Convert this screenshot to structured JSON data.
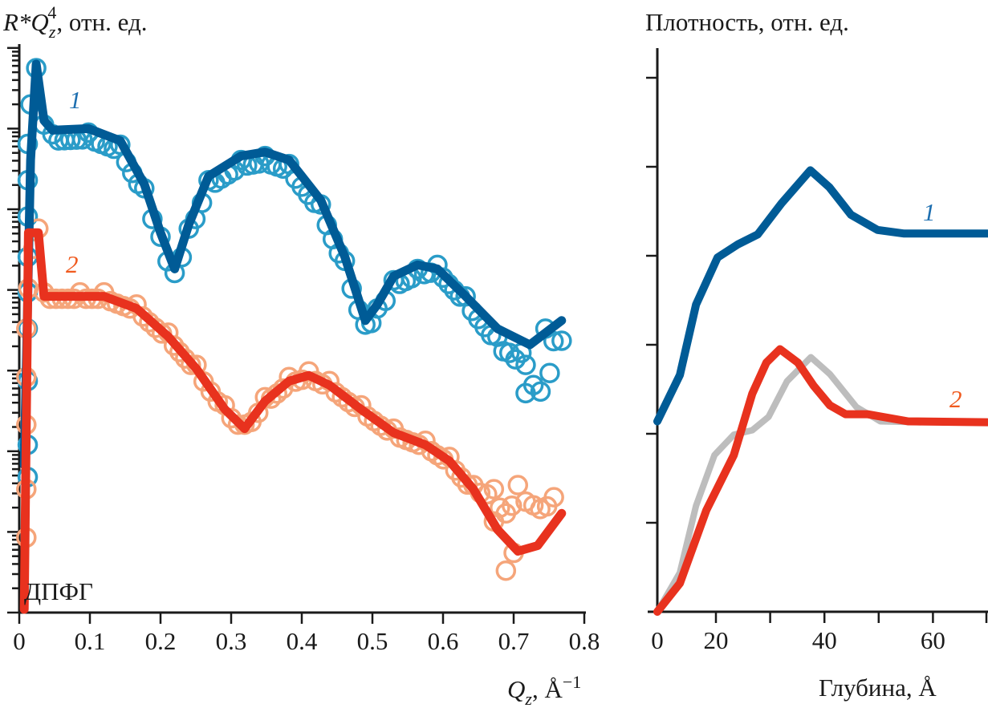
{
  "colors": {
    "fit1": "#005b96",
    "points1": "#2a9cc8",
    "fit2": "#e8321e",
    "points2": "#f5a57a",
    "reference": "#bdbdbd",
    "label1": "#1e6fb0",
    "label2": "#f05a1e"
  },
  "chart_data": [
    {
      "type": "scatter",
      "title": "",
      "ylabel_main": "R*Q",
      "ylabel_sub": "z",
      "ylabel_sup": "4",
      "ylabel_rest": ", отн. ед.",
      "xlabel_main": "Q",
      "xlabel_sub": "z",
      "xlabel_rest": ", Å",
      "xlabel_sup": "−1",
      "annotation": "ДПФГ",
      "yscale": "log (arbitrary decades, no tick labels)",
      "xlim": [
        0,
        0.8
      ],
      "ylim_decades": [
        0,
        7.05
      ],
      "xticks": [
        "0",
        "0.1",
        "0.2",
        "0.3",
        "0.4",
        "0.5",
        "0.6",
        "0.7",
        "0.8"
      ],
      "series": [
        {
          "name": "1",
          "kind": "fit",
          "color_key": "fit1",
          "x": [
            0.007,
            0.016,
            0.024,
            0.035,
            0.047,
            0.098,
            0.143,
            0.177,
            0.2,
            0.22,
            0.24,
            0.268,
            0.314,
            0.348,
            0.382,
            0.427,
            0.461,
            0.49,
            0.507,
            0.53,
            0.564,
            0.592,
            0.632,
            0.677,
            0.723,
            0.768
          ],
          "y": [
            1.83,
            5.61,
            6.8,
            6.1,
            5.98,
            6.0,
            5.85,
            5.31,
            4.71,
            4.26,
            4.81,
            5.41,
            5.66,
            5.71,
            5.61,
            5.11,
            4.41,
            3.62,
            3.82,
            4.17,
            4.31,
            4.26,
            3.92,
            3.52,
            3.32,
            3.62
          ]
        },
        {
          "name": "1",
          "kind": "measured",
          "color_key": "points1",
          "x": [
            0.012,
            0.012,
            0.012,
            0.012,
            0.012,
            0.012,
            0.012,
            0.012,
            0.012,
            0.016,
            0.024,
            0.035,
            0.047,
            0.098,
            0.143,
            0.177,
            0.2,
            0.22,
            0.24,
            0.268,
            0.314,
            0.348,
            0.382,
            0.427,
            0.461,
            0.49,
            0.507,
            0.53,
            0.564,
            0.592,
            0.632,
            0.677,
            0.694,
            0.711,
            0.717,
            0.728,
            0.738,
            0.751,
            0.745,
            0.768,
            0.717
          ],
          "y": [
            1.68,
            2.08,
            2.87,
            3.52,
            3.97,
            4.41,
            4.91,
            5.36,
            5.81,
            6.3,
            6.75,
            6.05,
            5.93,
            5.95,
            5.8,
            5.26,
            4.66,
            4.21,
            4.76,
            5.36,
            5.61,
            5.66,
            5.56,
            5.06,
            4.36,
            3.57,
            3.77,
            4.12,
            4.26,
            4.31,
            3.92,
            3.42,
            3.22,
            3.22,
            3.07,
            2.82,
            2.74,
            2.97,
            3.52,
            3.37,
            2.72
          ]
        },
        {
          "name": "2",
          "kind": "fit",
          "color_key": "fit2",
          "x": [
            0.007,
            0.013,
            0.027,
            0.035,
            0.086,
            0.12,
            0.166,
            0.211,
            0.251,
            0.291,
            0.319,
            0.348,
            0.382,
            0.41,
            0.439,
            0.484,
            0.53,
            0.575,
            0.609,
            0.643,
            0.677,
            0.706,
            0.734,
            0.768
          ],
          "y": [
            0.04,
            4.71,
            4.71,
            3.92,
            3.92,
            3.92,
            3.77,
            3.42,
            3.02,
            2.52,
            2.28,
            2.62,
            2.87,
            2.94,
            2.82,
            2.52,
            2.23,
            2.08,
            1.88,
            1.53,
            1.03,
            0.76,
            0.83,
            1.23
          ]
        },
        {
          "name": "2",
          "kind": "measured",
          "color_key": "points2",
          "x": [
            0.01,
            0.01,
            0.01,
            0.01,
            0.01,
            0.013,
            0.02,
            0.027,
            0.035,
            0.086,
            0.12,
            0.166,
            0.211,
            0.251,
            0.291,
            0.319,
            0.348,
            0.382,
            0.41,
            0.439,
            0.484,
            0.53,
            0.575,
            0.609,
            0.643,
            0.672,
            0.689,
            0.706,
            0.728,
            0.757,
            0.7,
            0.689,
            0.672
          ],
          "y": [
            0.93,
            1.53,
            2.33,
            2.92,
            3.52,
            4.02,
            4.51,
            4.76,
            3.97,
            3.97,
            3.97,
            3.82,
            3.47,
            3.07,
            2.57,
            2.33,
            2.67,
            2.92,
            2.99,
            2.87,
            2.57,
            2.28,
            2.13,
            1.93,
            1.58,
            1.53,
            1.23,
            1.58,
            1.33,
            1.43,
            0.74,
            0.52,
            1.13
          ]
        }
      ],
      "series_labels": [
        "1",
        "2"
      ]
    },
    {
      "type": "line",
      "title": "",
      "ylabel": "Плотность, отн. ед.",
      "xlabel": "Глубина, Å",
      "xlim": [
        0,
        70
      ],
      "ylim": [
        0,
        6.3
      ],
      "xticks": [
        "0",
        "20",
        "40",
        "60"
      ],
      "series": [
        {
          "name": "1",
          "color_key": "fit1",
          "x": [
            0,
            7.7,
            13.2,
            20.3,
            24.1,
            27.7,
            32.1,
            37.4,
            40.9,
            44.9,
            49.8,
            54.7,
            70
          ],
          "y": [
            2.14,
            2.66,
            3.45,
            3.98,
            4.13,
            4.24,
            4.59,
            4.96,
            4.77,
            4.46,
            4.29,
            4.25,
            4.25
          ]
        },
        {
          "name": "2",
          "color_key": "fit2",
          "x": [
            0,
            7.7,
            16.7,
            23.3,
            26.7,
            29.3,
            31.8,
            35.1,
            38,
            41,
            43.9,
            47.9,
            55.4,
            70
          ],
          "y": [
            0,
            0.32,
            1.14,
            1.76,
            2.45,
            2.8,
            2.95,
            2.8,
            2.54,
            2.32,
            2.22,
            2.22,
            2.14,
            2.13
          ]
        },
        {
          "name": "reference",
          "color_key": "reference",
          "x": [
            0,
            7.7,
            13.2,
            19.5,
            23.3,
            26.7,
            29.7,
            33.1,
            37.5,
            41,
            45.9,
            50.3,
            57.7
          ],
          "y": [
            0,
            0.44,
            1.19,
            1.76,
            1.99,
            2.04,
            2.19,
            2.59,
            2.86,
            2.67,
            2.3,
            2.14,
            2.13
          ]
        }
      ],
      "series_labels": [
        "1",
        "2"
      ]
    }
  ]
}
